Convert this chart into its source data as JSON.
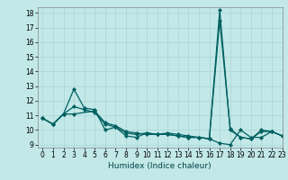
{
  "title": "",
  "xlabel": "Humidex (Indice chaleur)",
  "xlim": [
    -0.5,
    23
  ],
  "ylim": [
    8.8,
    18.4
  ],
  "background_color": "#c2e8e8",
  "grid_color": "#aad4d4",
  "line_color": "#006060",
  "line1_x": [
    0,
    1,
    2,
    3,
    4,
    5,
    6,
    7,
    8,
    9,
    10,
    11,
    12,
    13,
    14,
    15,
    16,
    17,
    18,
    19,
    20,
    21,
    22,
    23
  ],
  "line1_y": [
    10.8,
    10.4,
    11.1,
    12.8,
    11.5,
    11.4,
    10.0,
    10.2,
    9.6,
    9.5,
    9.8,
    9.7,
    9.8,
    9.7,
    9.6,
    9.5,
    9.4,
    18.2,
    10.0,
    9.5,
    9.4,
    10.0,
    9.9,
    9.6
  ],
  "line2_x": [
    0,
    1,
    2,
    3,
    4,
    5,
    6,
    7,
    8,
    9,
    10,
    11,
    12,
    13,
    14,
    15,
    16,
    17,
    18,
    19,
    20,
    21,
    22,
    23
  ],
  "line2_y": [
    10.8,
    10.4,
    11.1,
    11.6,
    11.4,
    11.2,
    10.4,
    10.2,
    9.8,
    9.7,
    9.8,
    9.7,
    9.7,
    9.6,
    9.5,
    9.5,
    9.4,
    17.5,
    10.1,
    9.5,
    9.4,
    9.9,
    9.9,
    9.6
  ],
  "line3_x": [
    0,
    1,
    2,
    3,
    5,
    6,
    7,
    8,
    9,
    10,
    11,
    12,
    13,
    14,
    15,
    16,
    17,
    18,
    19,
    20,
    21,
    22,
    23
  ],
  "line3_y": [
    10.8,
    10.4,
    11.1,
    11.1,
    11.3,
    10.5,
    10.3,
    9.9,
    9.8,
    9.7,
    9.7,
    9.7,
    9.6,
    9.5,
    9.5,
    9.4,
    9.1,
    9.0,
    10.0,
    9.5,
    9.5,
    9.9,
    9.6
  ],
  "xticks": [
    0,
    1,
    2,
    3,
    4,
    5,
    6,
    7,
    8,
    9,
    10,
    11,
    12,
    13,
    14,
    15,
    16,
    17,
    18,
    19,
    20,
    21,
    22,
    23
  ],
  "yticks": [
    9,
    10,
    11,
    12,
    13,
    14,
    15,
    16,
    17,
    18
  ],
  "xlabel_fontsize": 6.5,
  "tick_fontsize": 5.5,
  "linewidth": 0.9,
  "markersize": 2.2
}
